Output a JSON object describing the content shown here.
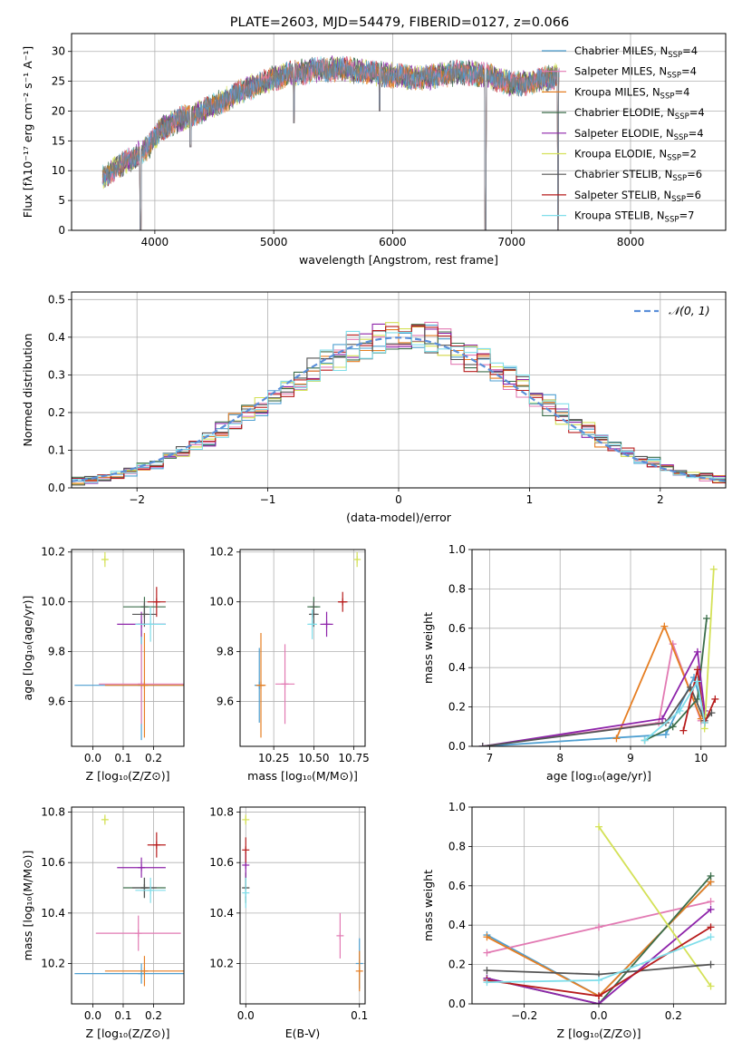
{
  "figure": {
    "title": "PLATE=2603, MJD=54479, FIBERID=0127, z=0.066"
  },
  "colors": {
    "chabrier_miles": "#4e9fd1",
    "salpeter_miles": "#e27ab3",
    "kroupa_miles": "#e67e22",
    "chabrier_elodie": "#3c6e4b",
    "salpeter_elodie": "#8e24aa",
    "kroupa_elodie": "#d4e157",
    "chabrier_stelib": "#555555",
    "salpeter_stelib": "#b71c1c",
    "kroupa_stelib": "#80deea",
    "normal": "#5b8fd9"
  },
  "chart_data": [
    {
      "id": "spectrum",
      "type": "line",
      "title": "PLATE=2603, MJD=54479, FIBERID=0127, z=0.066",
      "xlabel": "wavelength [Angstrom, rest frame]",
      "ylabel": "Flux [fλ10⁻¹⁷ erg cm⁻² s⁻¹ A⁻¹]",
      "xlim": [
        3300,
        8800
      ],
      "ylim": [
        0,
        33
      ],
      "xticks": [
        4000,
        5000,
        6000,
        7000,
        8000
      ],
      "yticks": [
        0,
        5,
        10,
        15,
        20,
        25,
        30
      ],
      "legend_position": "top-right",
      "legend": [
        {
          "label": "Chabrier MILES, N",
          "sub": "SSP",
          "tail": "=4",
          "color_key": "chabrier_miles"
        },
        {
          "label": "Salpeter MILES, N",
          "sub": "SSP",
          "tail": "=4",
          "color_key": "salpeter_miles"
        },
        {
          "label": "Kroupa MILES, N",
          "sub": "SSP",
          "tail": "=4",
          "color_key": "kroupa_miles"
        },
        {
          "label": "Chabrier ELODIE, N",
          "sub": "SSP",
          "tail": "=4",
          "color_key": "chabrier_elodie"
        },
        {
          "label": "Salpeter ELODIE, N",
          "sub": "SSP",
          "tail": "=4",
          "color_key": "salpeter_elodie"
        },
        {
          "label": "Kroupa ELODIE, N",
          "sub": "SSP",
          "tail": "=2",
          "color_key": "kroupa_elodie"
        },
        {
          "label": "Chabrier STELIB, N",
          "sub": "SSP",
          "tail": "=6",
          "color_key": "chabrier_stelib"
        },
        {
          "label": "Salpeter STELIB, N",
          "sub": "SSP",
          "tail": "=6",
          "color_key": "salpeter_stelib"
        },
        {
          "label": "Kroupa STELIB, N",
          "sub": "SSP",
          "tail": "=7",
          "color_key": "kroupa_stelib"
        }
      ],
      "continuum": {
        "x": [
          3560,
          3650,
          3750,
          3850,
          3950,
          4050,
          4200,
          4400,
          4600,
          4800,
          5000,
          5200,
          5400,
          5600,
          5800,
          6000,
          6200,
          6400,
          6600,
          6800,
          7000,
          7200,
          7400
        ],
        "y": [
          9,
          10,
          11.5,
          12.5,
          14,
          17,
          18.5,
          20,
          22,
          24,
          25.5,
          26.5,
          27,
          27,
          26.5,
          26,
          25.5,
          26,
          26.5,
          26,
          24.5,
          25,
          26
        ]
      },
      "dips": {
        "x": [
          3880,
          4300,
          5170,
          5890,
          6780,
          7390
        ],
        "y": [
          0,
          14,
          18,
          20,
          0,
          0
        ]
      }
    },
    {
      "id": "residuals",
      "type": "line",
      "xlabel": "(data-model)/error",
      "ylabel": "Normed distribution",
      "xlim": [
        -2.5,
        2.5
      ],
      "ylim": [
        0,
        0.52
      ],
      "xticks": [
        -2,
        -1,
        0,
        1,
        2
      ],
      "yticks": [
        0,
        0.1,
        0.2,
        0.3,
        0.4,
        0.5
      ],
      "bins": {
        "start": -2.5,
        "width": 0.1,
        "count": 50
      },
      "legend_position": "top-right",
      "legend": {
        "label": "𝒩(0, 1)",
        "color_key": "normal"
      }
    },
    {
      "id": "age_vs_z",
      "type": "scatter",
      "xlabel": "Z [log₁₀(Z/Z⊙)]",
      "ylabel": "age  [log₁₀(age/yr)]",
      "xlim": [
        -0.07,
        0.3
      ],
      "ylim": [
        9.42,
        10.21
      ],
      "xticks": [
        0.0,
        0.1,
        0.2
      ],
      "yticks": [
        9.6,
        9.8,
        10.0,
        10.2
      ],
      "points": [
        {
          "color_key": "chabrier_miles",
          "x": 0.16,
          "y": 9.665,
          "xerr": 0.22,
          "yerr": 0.22
        },
        {
          "color_key": "salpeter_miles",
          "x": 0.16,
          "y": 9.67,
          "xerr": 0.14,
          "yerr": 0.16
        },
        {
          "color_key": "kroupa_miles",
          "x": 0.17,
          "y": 9.665,
          "xerr": 0.13,
          "yerr": 0.21
        },
        {
          "color_key": "chabrier_elodie",
          "x": 0.17,
          "y": 9.98,
          "xerr": 0.07,
          "yerr": 0.04
        },
        {
          "color_key": "salpeter_elodie",
          "x": 0.16,
          "y": 9.91,
          "xerr": 0.08,
          "yerr": 0.05
        },
        {
          "color_key": "kroupa_elodie",
          "x": 0.04,
          "y": 10.17,
          "xerr": 0.01,
          "yerr": 0.03
        },
        {
          "color_key": "chabrier_stelib",
          "x": 0.17,
          "y": 9.95,
          "xerr": 0.04,
          "yerr": 0.05
        },
        {
          "color_key": "salpeter_stelib",
          "x": 0.21,
          "y": 10.0,
          "xerr": 0.03,
          "yerr": 0.06
        },
        {
          "color_key": "kroupa_stelib",
          "x": 0.19,
          "y": 9.91,
          "xerr": 0.05,
          "yerr": 0.07
        }
      ]
    },
    {
      "id": "age_vs_mass",
      "type": "scatter",
      "xlabel": "mass [log₁₀(M/M⊙)]",
      "ylabel": "",
      "xlim": [
        10.04,
        10.82
      ],
      "ylim": [
        9.42,
        10.21
      ],
      "xticks": [
        10.25,
        10.5,
        10.75
      ],
      "yticks": [
        9.6,
        9.8,
        10.0,
        10.2
      ],
      "points": [
        {
          "color_key": "chabrier_miles",
          "x": 10.16,
          "y": 9.665,
          "xerr": 0.03,
          "yerr": 0.15
        },
        {
          "color_key": "salpeter_miles",
          "x": 10.32,
          "y": 9.67,
          "xerr": 0.06,
          "yerr": 0.16
        },
        {
          "color_key": "kroupa_miles",
          "x": 10.17,
          "y": 9.665,
          "xerr": 0.03,
          "yerr": 0.21
        },
        {
          "color_key": "chabrier_elodie",
          "x": 10.5,
          "y": 9.98,
          "xerr": 0.04,
          "yerr": 0.04
        },
        {
          "color_key": "salpeter_elodie",
          "x": 10.58,
          "y": 9.91,
          "xerr": 0.04,
          "yerr": 0.05
        },
        {
          "color_key": "kroupa_elodie",
          "x": 10.77,
          "y": 10.17,
          "xerr": 0.01,
          "yerr": 0.03
        },
        {
          "color_key": "chabrier_stelib",
          "x": 10.5,
          "y": 9.95,
          "xerr": 0.03,
          "yerr": 0.05
        },
        {
          "color_key": "salpeter_stelib",
          "x": 10.68,
          "y": 10.0,
          "xerr": 0.03,
          "yerr": 0.04
        },
        {
          "color_key": "kroupa_stelib",
          "x": 10.49,
          "y": 9.91,
          "xerr": 0.03,
          "yerr": 0.06
        }
      ]
    },
    {
      "id": "weight_vs_age",
      "type": "line",
      "xlabel": "age  [log₁₀(age/yr)]",
      "ylabel": "mass weight",
      "xlim": [
        6.75,
        10.35
      ],
      "ylim": [
        0,
        1.0
      ],
      "xticks": [
        7,
        8,
        9,
        10
      ],
      "yticks": [
        0,
        0.2,
        0.4,
        0.6,
        0.8,
        1.0
      ],
      "series": [
        {
          "color_key": "chabrier_miles",
          "x": [
            6.9,
            9.5,
            9.9,
            10.05
          ],
          "y": [
            0.0,
            0.06,
            0.35,
            0.16
          ]
        },
        {
          "color_key": "salpeter_miles",
          "x": [
            6.9,
            9.4,
            9.6,
            10.0
          ],
          "y": [
            0.0,
            0.12,
            0.52,
            0.13
          ]
        },
        {
          "color_key": "kroupa_miles",
          "x": [
            8.8,
            9.48,
            10.0
          ],
          "y": [
            0.04,
            0.61,
            0.14
          ]
        },
        {
          "color_key": "chabrier_elodie",
          "x": [
            9.2,
            9.6,
            9.95,
            10.08
          ],
          "y": [
            0.03,
            0.1,
            0.24,
            0.65
          ]
        },
        {
          "color_key": "salpeter_elodie",
          "x": [
            6.9,
            9.45,
            9.95,
            10.05
          ],
          "y": [
            0.0,
            0.14,
            0.48,
            0.18
          ]
        },
        {
          "color_key": "kroupa_elodie",
          "x": [
            10.05,
            10.18
          ],
          "y": [
            0.09,
            0.9
          ]
        },
        {
          "color_key": "chabrier_stelib",
          "x": [
            6.9,
            9.5,
            9.85,
            10.05,
            10.15
          ],
          "y": [
            0.0,
            0.12,
            0.3,
            0.13,
            0.17
          ]
        },
        {
          "color_key": "salpeter_stelib",
          "x": [
            9.75,
            9.95,
            10.05,
            10.2
          ],
          "y": [
            0.08,
            0.39,
            0.12,
            0.24
          ]
        },
        {
          "color_key": "kroupa_stelib",
          "x": [
            9.2,
            9.7,
            9.95,
            10.05
          ],
          "y": [
            0.03,
            0.18,
            0.33,
            0.12
          ]
        }
      ]
    },
    {
      "id": "mass_vs_z",
      "type": "scatter",
      "xlabel": "Z [log₁₀(Z/Z⊙)]",
      "ylabel": "mass [log₁₀(M/M⊙)]",
      "xlim": [
        -0.07,
        0.3
      ],
      "ylim": [
        10.04,
        10.82
      ],
      "xticks": [
        0.0,
        0.1,
        0.2
      ],
      "yticks": [
        10.2,
        10.4,
        10.6,
        10.8
      ],
      "points": [
        {
          "color_key": "chabrier_miles",
          "x": 0.16,
          "y": 10.16,
          "xerr": 0.22,
          "yerr": 0.04
        },
        {
          "color_key": "salpeter_miles",
          "x": 0.15,
          "y": 10.32,
          "xerr": 0.14,
          "yerr": 0.07
        },
        {
          "color_key": "kroupa_miles",
          "x": 0.17,
          "y": 10.17,
          "xerr": 0.13,
          "yerr": 0.06
        },
        {
          "color_key": "chabrier_elodie",
          "x": 0.17,
          "y": 10.5,
          "xerr": 0.07,
          "yerr": 0.04
        },
        {
          "color_key": "salpeter_elodie",
          "x": 0.16,
          "y": 10.58,
          "xerr": 0.08,
          "yerr": 0.04
        },
        {
          "color_key": "kroupa_elodie",
          "x": 0.04,
          "y": 10.77,
          "xerr": 0.01,
          "yerr": 0.02
        },
        {
          "color_key": "chabrier_stelib",
          "x": 0.17,
          "y": 10.5,
          "xerr": 0.04,
          "yerr": 0.04
        },
        {
          "color_key": "salpeter_stelib",
          "x": 0.21,
          "y": 10.67,
          "xerr": 0.03,
          "yerr": 0.05
        },
        {
          "color_key": "kroupa_stelib",
          "x": 0.19,
          "y": 10.49,
          "xerr": 0.05,
          "yerr": 0.05
        }
      ]
    },
    {
      "id": "mass_vs_ebv",
      "type": "scatter",
      "xlabel": "E(B-V)",
      "ylabel": "",
      "xlim": [
        -0.005,
        0.105
      ],
      "ylim": [
        10.04,
        10.82
      ],
      "xticks": [
        0.0,
        0.1
      ],
      "yticks": [
        10.2,
        10.4,
        10.6,
        10.8
      ],
      "points": [
        {
          "color_key": "chabrier_miles",
          "x": 0.1,
          "y": 10.2,
          "xerr": 0.0,
          "yerr": 0.1
        },
        {
          "color_key": "salpeter_miles",
          "x": 0.083,
          "y": 10.31,
          "xerr": 0.0,
          "yerr": 0.09
        },
        {
          "color_key": "kroupa_miles",
          "x": 0.1,
          "y": 10.17,
          "xerr": 0.0,
          "yerr": 0.08
        },
        {
          "color_key": "chabrier_elodie",
          "x": 0.0,
          "y": 10.5,
          "xerr": 0.0,
          "yerr": 0.06
        },
        {
          "color_key": "salpeter_elodie",
          "x": 0.0,
          "y": 10.59,
          "xerr": 0.0,
          "yerr": 0.05
        },
        {
          "color_key": "kroupa_elodie",
          "x": 0.0,
          "y": 10.77,
          "xerr": 0.0,
          "yerr": 0.02
        },
        {
          "color_key": "chabrier_stelib",
          "x": 0.0,
          "y": 10.5,
          "xerr": 0.0,
          "yerr": 0.04
        },
        {
          "color_key": "salpeter_stelib",
          "x": 0.0,
          "y": 10.65,
          "xerr": 0.0,
          "yerr": 0.05
        },
        {
          "color_key": "kroupa_stelib",
          "x": 0.0,
          "y": 10.48,
          "xerr": 0.0,
          "yerr": 0.06
        }
      ]
    },
    {
      "id": "weight_vs_z",
      "type": "line",
      "xlabel": "Z [log₁₀(Z/Z⊙)]",
      "ylabel": "mass weight",
      "xlim": [
        -0.34,
        0.34
      ],
      "ylim": [
        0,
        1.0
      ],
      "xticks": [
        -0.2,
        0.0,
        0.2
      ],
      "yticks": [
        0,
        0.2,
        0.4,
        0.6,
        0.8,
        1.0
      ],
      "series": [
        {
          "color_key": "chabrier_miles",
          "x": [
            -0.3,
            0.0,
            0.3
          ],
          "y": [
            0.35,
            0.04,
            0.62
          ]
        },
        {
          "color_key": "salpeter_miles",
          "x": [
            -0.3,
            0.0,
            0.3
          ],
          "y": [
            0.26,
            0.39,
            0.52
          ]
        },
        {
          "color_key": "kroupa_miles",
          "x": [
            -0.3,
            0.0,
            0.3
          ],
          "y": [
            0.34,
            0.04,
            0.62
          ]
        },
        {
          "color_key": "chabrier_elodie",
          "x": [
            -0.3,
            0.0,
            0.3
          ],
          "y": [
            0.13,
            0.0,
            0.65
          ]
        },
        {
          "color_key": "salpeter_elodie",
          "x": [
            -0.3,
            0.0,
            0.3
          ],
          "y": [
            0.13,
            0.0,
            0.48
          ]
        },
        {
          "color_key": "kroupa_elodie",
          "x": [
            0.0,
            0.3
          ],
          "y": [
            0.9,
            0.09
          ]
        },
        {
          "color_key": "chabrier_stelib",
          "x": [
            -0.3,
            0.0,
            0.3
          ],
          "y": [
            0.17,
            0.15,
            0.2
          ]
        },
        {
          "color_key": "salpeter_stelib",
          "x": [
            -0.3,
            0.0,
            0.3
          ],
          "y": [
            0.12,
            0.04,
            0.39
          ]
        },
        {
          "color_key": "kroupa_stelib",
          "x": [
            -0.3,
            0.0,
            0.3
          ],
          "y": [
            0.11,
            0.12,
            0.34
          ]
        }
      ]
    }
  ]
}
